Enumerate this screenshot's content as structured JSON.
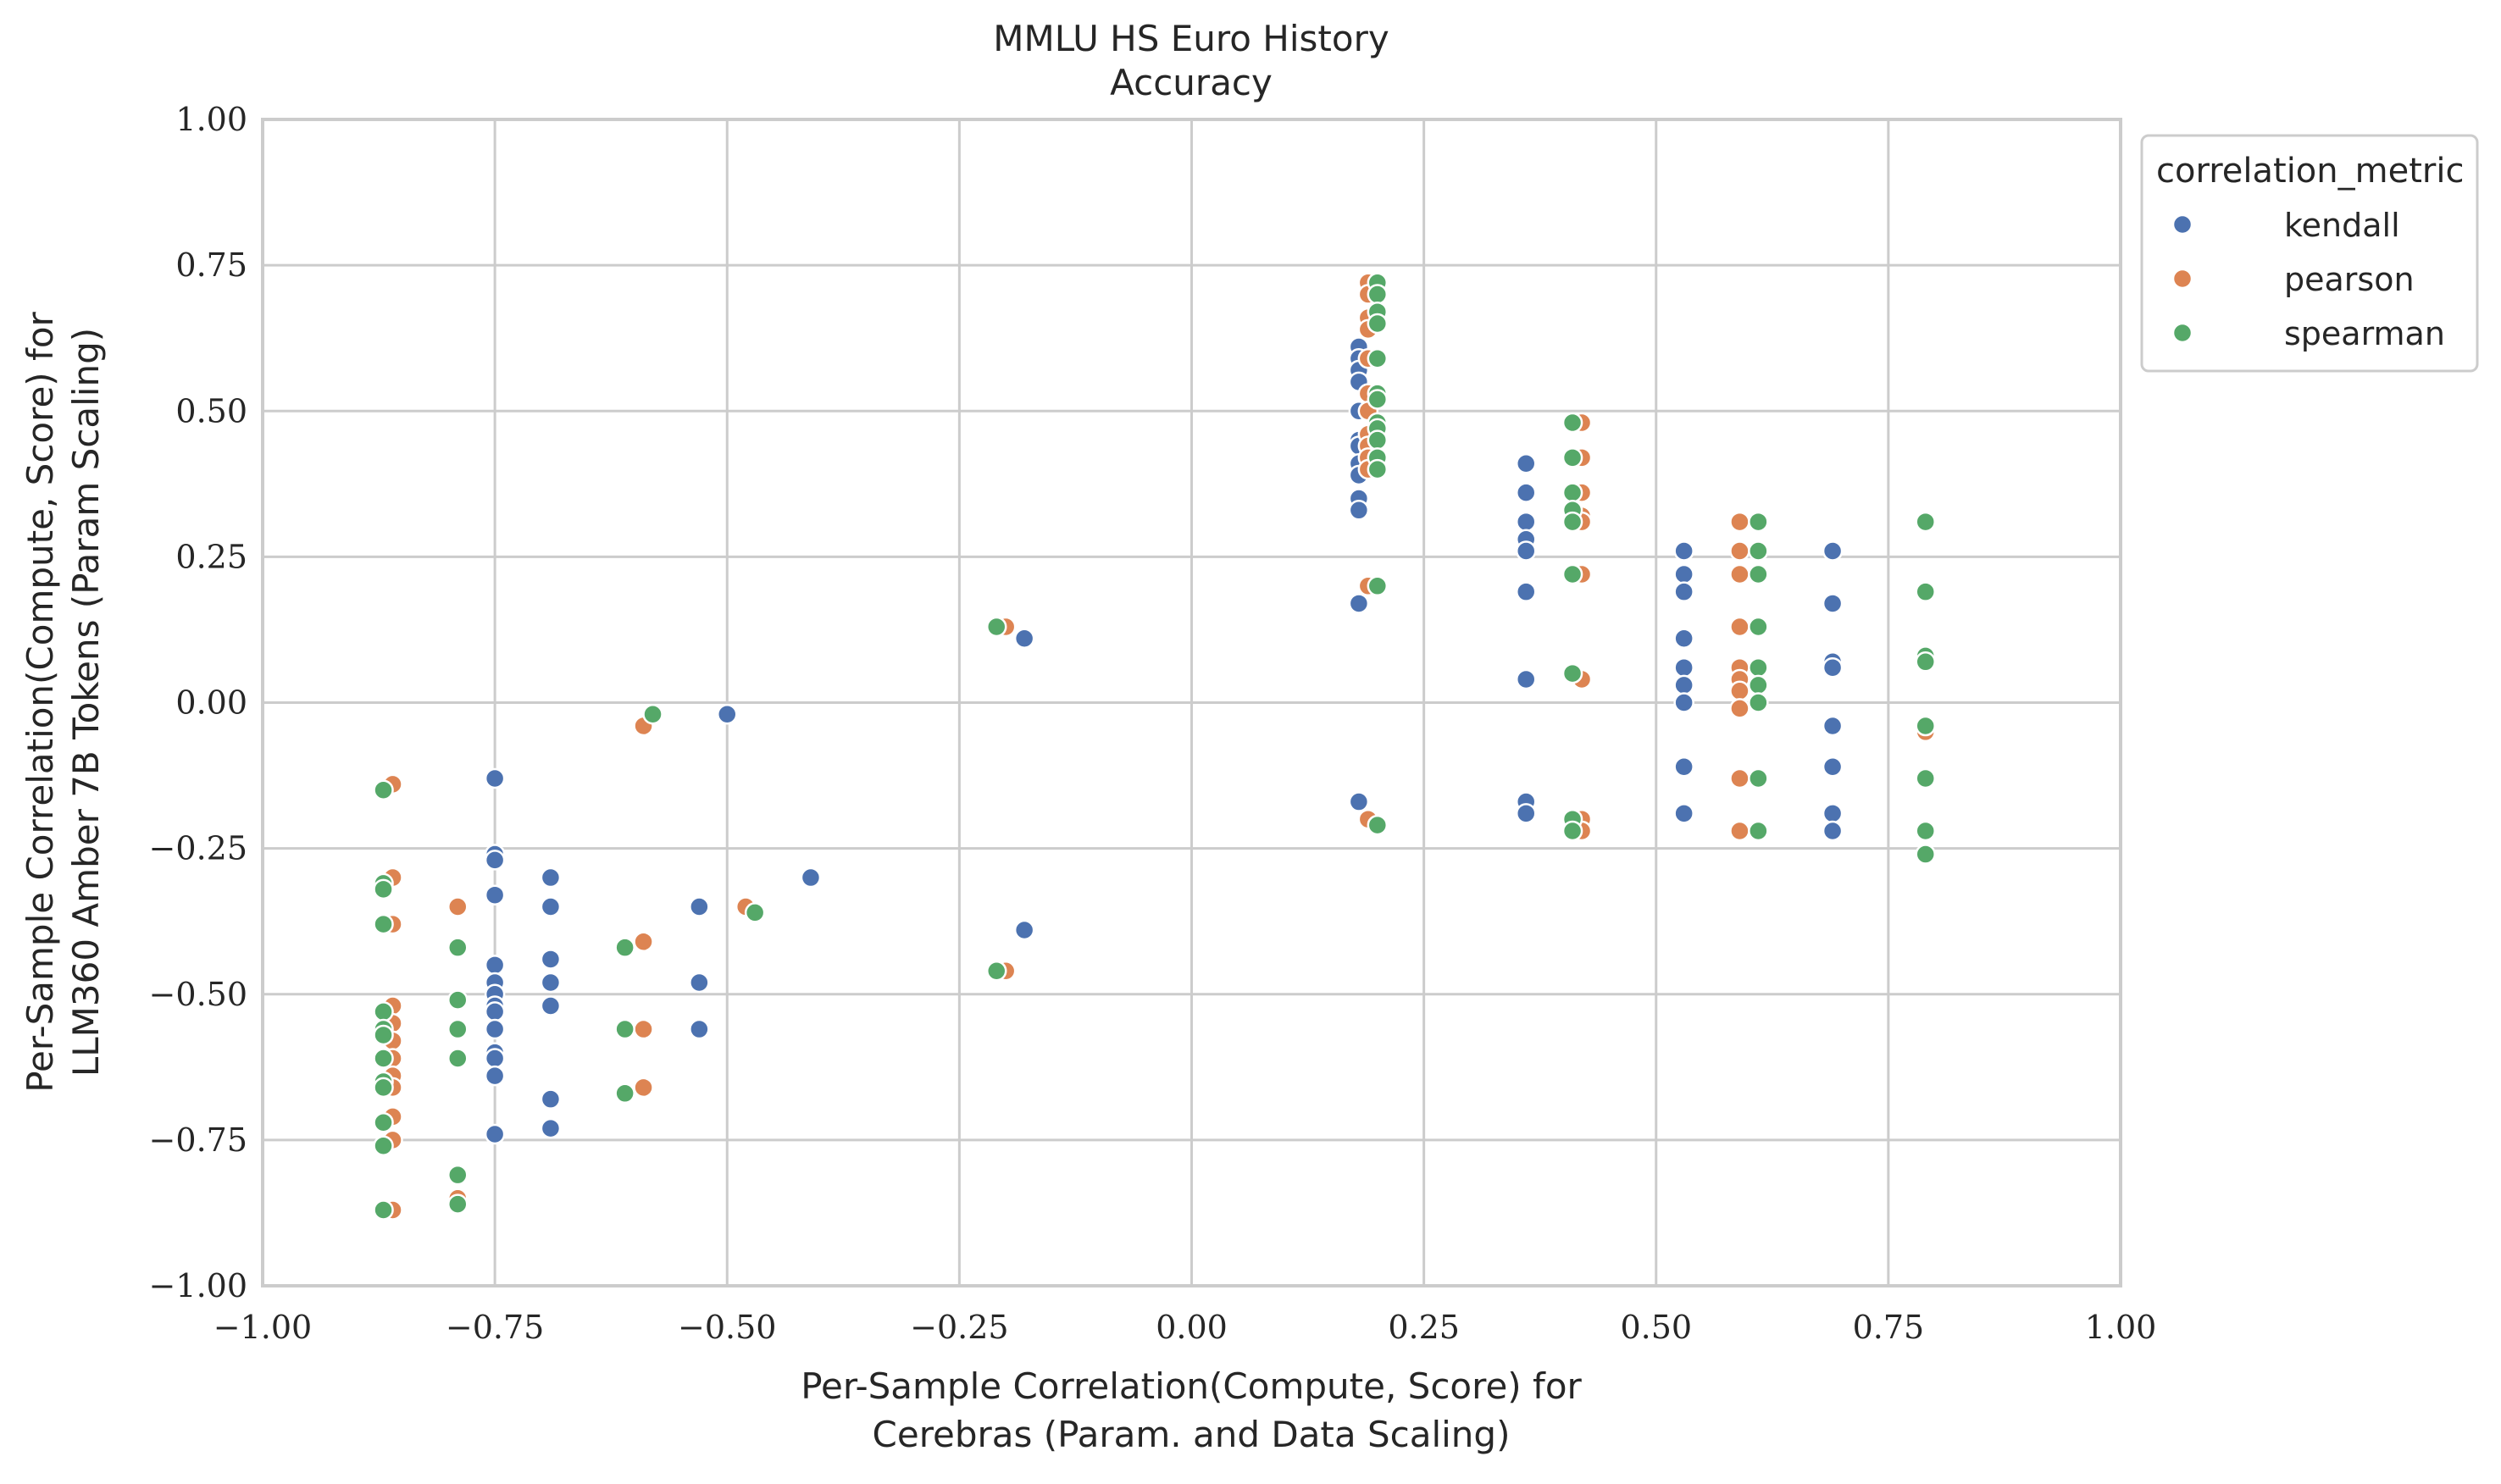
{
  "chart_data": {
    "type": "scatter",
    "title": "MMLU HS Euro History",
    "subtitle": "Accuracy",
    "xlabel": [
      "Per-Sample Correlation(Compute, Score) for",
      "Cerebras (Param. and Data Scaling)"
    ],
    "ylabel": [
      "Per-Sample Correlation(Compute, Score) for",
      "LLM360 Amber 7B Tokens (Param Scaling)"
    ],
    "xlim": [
      -1.0,
      1.0
    ],
    "ylim": [
      -1.0,
      1.0
    ],
    "xticks": [
      -1.0,
      -0.75,
      -0.5,
      -0.25,
      0.0,
      0.25,
      0.5,
      0.75,
      1.0
    ],
    "yticks": [
      -1.0,
      -0.75,
      -0.5,
      -0.25,
      0.0,
      0.25,
      0.5,
      0.75,
      1.0
    ],
    "xtick_labels": [
      "−1.00",
      "−0.75",
      "−0.50",
      "−0.25",
      "0.00",
      "0.25",
      "0.50",
      "0.75",
      "1.00"
    ],
    "ytick_labels": [
      "−1.00",
      "−0.75",
      "−0.50",
      "−0.25",
      "0.00",
      "0.25",
      "0.50",
      "0.75",
      "1.00"
    ],
    "grid": true,
    "legend": {
      "title": "correlation_metric",
      "placement": "outside-top-right"
    },
    "series": [
      {
        "name": "kendall",
        "color": "#4c72b0",
        "points": [
          [
            -0.75,
            -0.13
          ],
          [
            -0.75,
            -0.26
          ],
          [
            -0.75,
            -0.27
          ],
          [
            -0.75,
            -0.33
          ],
          [
            -0.75,
            -0.45
          ],
          [
            -0.75,
            -0.48
          ],
          [
            -0.75,
            -0.5
          ],
          [
            -0.75,
            -0.52
          ],
          [
            -0.75,
            -0.53
          ],
          [
            -0.75,
            -0.56
          ],
          [
            -0.75,
            -0.6
          ],
          [
            -0.75,
            -0.61
          ],
          [
            -0.75,
            -0.64
          ],
          [
            -0.75,
            -0.74
          ],
          [
            -0.69,
            -0.3
          ],
          [
            -0.69,
            -0.35
          ],
          [
            -0.69,
            -0.44
          ],
          [
            -0.69,
            -0.48
          ],
          [
            -0.69,
            -0.52
          ],
          [
            -0.69,
            -0.68
          ],
          [
            -0.69,
            -0.73
          ],
          [
            -0.53,
            -0.35
          ],
          [
            -0.53,
            -0.48
          ],
          [
            -0.53,
            -0.56
          ],
          [
            -0.5,
            -0.02
          ],
          [
            -0.41,
            -0.3
          ],
          [
            -0.18,
            0.11
          ],
          [
            -0.18,
            -0.39
          ],
          [
            0.18,
            0.61
          ],
          [
            0.18,
            0.59
          ],
          [
            0.18,
            0.57
          ],
          [
            0.18,
            0.55
          ],
          [
            0.18,
            0.5
          ],
          [
            0.18,
            0.45
          ],
          [
            0.18,
            0.44
          ],
          [
            0.18,
            0.41
          ],
          [
            0.18,
            0.39
          ],
          [
            0.18,
            0.35
          ],
          [
            0.18,
            0.33
          ],
          [
            0.18,
            0.17
          ],
          [
            0.18,
            -0.17
          ],
          [
            0.36,
            0.41
          ],
          [
            0.36,
            0.36
          ],
          [
            0.36,
            0.31
          ],
          [
            0.36,
            0.28
          ],
          [
            0.36,
            0.26
          ],
          [
            0.36,
            0.19
          ],
          [
            0.36,
            0.04
          ],
          [
            0.36,
            -0.17
          ],
          [
            0.36,
            -0.19
          ],
          [
            0.53,
            0.26
          ],
          [
            0.53,
            0.22
          ],
          [
            0.53,
            0.19
          ],
          [
            0.53,
            0.11
          ],
          [
            0.53,
            0.06
          ],
          [
            0.53,
            0.03
          ],
          [
            0.53,
            0.0
          ],
          [
            0.53,
            -0.11
          ],
          [
            0.53,
            -0.19
          ],
          [
            0.69,
            0.26
          ],
          [
            0.69,
            0.17
          ],
          [
            0.69,
            0.07
          ],
          [
            0.69,
            0.06
          ],
          [
            0.69,
            -0.04
          ],
          [
            0.69,
            -0.11
          ],
          [
            0.69,
            -0.19
          ],
          [
            0.69,
            -0.22
          ]
        ]
      },
      {
        "name": "pearson",
        "color": "#dd8452",
        "points": [
          [
            -0.86,
            -0.14
          ],
          [
            -0.86,
            -0.3
          ],
          [
            -0.86,
            -0.38
          ],
          [
            -0.86,
            -0.52
          ],
          [
            -0.86,
            -0.55
          ],
          [
            -0.86,
            -0.58
          ],
          [
            -0.86,
            -0.61
          ],
          [
            -0.86,
            -0.64
          ],
          [
            -0.86,
            -0.66
          ],
          [
            -0.86,
            -0.71
          ],
          [
            -0.86,
            -0.75
          ],
          [
            -0.86,
            -0.87
          ],
          [
            -0.79,
            -0.35
          ],
          [
            -0.79,
            -0.85
          ],
          [
            -0.59,
            -0.04
          ],
          [
            -0.59,
            -0.41
          ],
          [
            -0.59,
            -0.56
          ],
          [
            -0.59,
            -0.66
          ],
          [
            -0.48,
            -0.35
          ],
          [
            -0.2,
            0.13
          ],
          [
            -0.2,
            -0.46
          ],
          [
            0.19,
            0.72
          ],
          [
            0.19,
            0.7
          ],
          [
            0.19,
            0.66
          ],
          [
            0.19,
            0.64
          ],
          [
            0.19,
            0.59
          ],
          [
            0.19,
            0.53
          ],
          [
            0.19,
            0.5
          ],
          [
            0.19,
            0.46
          ],
          [
            0.19,
            0.44
          ],
          [
            0.19,
            0.42
          ],
          [
            0.19,
            0.4
          ],
          [
            0.19,
            0.2
          ],
          [
            0.19,
            -0.2
          ],
          [
            0.42,
            0.48
          ],
          [
            0.42,
            0.42
          ],
          [
            0.42,
            0.36
          ],
          [
            0.42,
            0.32
          ],
          [
            0.42,
            0.31
          ],
          [
            0.42,
            0.22
          ],
          [
            0.42,
            0.04
          ],
          [
            0.42,
            -0.2
          ],
          [
            0.42,
            -0.22
          ],
          [
            0.59,
            0.31
          ],
          [
            0.59,
            0.26
          ],
          [
            0.59,
            0.22
          ],
          [
            0.59,
            0.13
          ],
          [
            0.59,
            0.06
          ],
          [
            0.59,
            0.04
          ],
          [
            0.59,
            0.02
          ],
          [
            0.59,
            -0.01
          ],
          [
            0.59,
            -0.13
          ],
          [
            0.59,
            -0.22
          ],
          [
            0.79,
            0.19
          ],
          [
            0.79,
            -0.05
          ]
        ]
      },
      {
        "name": "spearman",
        "color": "#55a868",
        "points": [
          [
            -0.87,
            -0.15
          ],
          [
            -0.87,
            -0.31
          ],
          [
            -0.87,
            -0.32
          ],
          [
            -0.87,
            -0.38
          ],
          [
            -0.87,
            -0.53
          ],
          [
            -0.87,
            -0.56
          ],
          [
            -0.87,
            -0.57
          ],
          [
            -0.87,
            -0.61
          ],
          [
            -0.87,
            -0.65
          ],
          [
            -0.87,
            -0.66
          ],
          [
            -0.87,
            -0.72
          ],
          [
            -0.87,
            -0.76
          ],
          [
            -0.87,
            -0.87
          ],
          [
            -0.79,
            -0.42
          ],
          [
            -0.79,
            -0.51
          ],
          [
            -0.79,
            -0.56
          ],
          [
            -0.79,
            -0.61
          ],
          [
            -0.79,
            -0.81
          ],
          [
            -0.79,
            -0.86
          ],
          [
            -0.61,
            -0.42
          ],
          [
            -0.61,
            -0.56
          ],
          [
            -0.61,
            -0.67
          ],
          [
            -0.58,
            -0.02
          ],
          [
            -0.47,
            -0.36
          ],
          [
            -0.21,
            0.13
          ],
          [
            -0.21,
            -0.46
          ],
          [
            0.2,
            0.72
          ],
          [
            0.2,
            0.7
          ],
          [
            0.2,
            0.67
          ],
          [
            0.2,
            0.65
          ],
          [
            0.2,
            0.59
          ],
          [
            0.2,
            0.53
          ],
          [
            0.2,
            0.52
          ],
          [
            0.2,
            0.48
          ],
          [
            0.2,
            0.47
          ],
          [
            0.2,
            0.45
          ],
          [
            0.2,
            0.42
          ],
          [
            0.2,
            0.4
          ],
          [
            0.2,
            0.2
          ],
          [
            0.2,
            -0.21
          ],
          [
            0.41,
            0.48
          ],
          [
            0.41,
            0.42
          ],
          [
            0.41,
            0.36
          ],
          [
            0.41,
            0.33
          ],
          [
            0.41,
            0.31
          ],
          [
            0.41,
            0.22
          ],
          [
            0.41,
            0.05
          ],
          [
            0.41,
            -0.2
          ],
          [
            0.41,
            -0.22
          ],
          [
            0.61,
            0.31
          ],
          [
            0.61,
            0.26
          ],
          [
            0.61,
            0.22
          ],
          [
            0.61,
            0.13
          ],
          [
            0.61,
            0.06
          ],
          [
            0.61,
            0.03
          ],
          [
            0.61,
            0.0
          ],
          [
            0.61,
            -0.13
          ],
          [
            0.61,
            -0.22
          ],
          [
            0.79,
            0.31
          ],
          [
            0.79,
            0.19
          ],
          [
            0.79,
            0.08
          ],
          [
            0.79,
            0.07
          ],
          [
            0.79,
            -0.04
          ],
          [
            0.79,
            -0.13
          ],
          [
            0.79,
            -0.22
          ],
          [
            0.79,
            -0.26
          ]
        ]
      }
    ]
  }
}
